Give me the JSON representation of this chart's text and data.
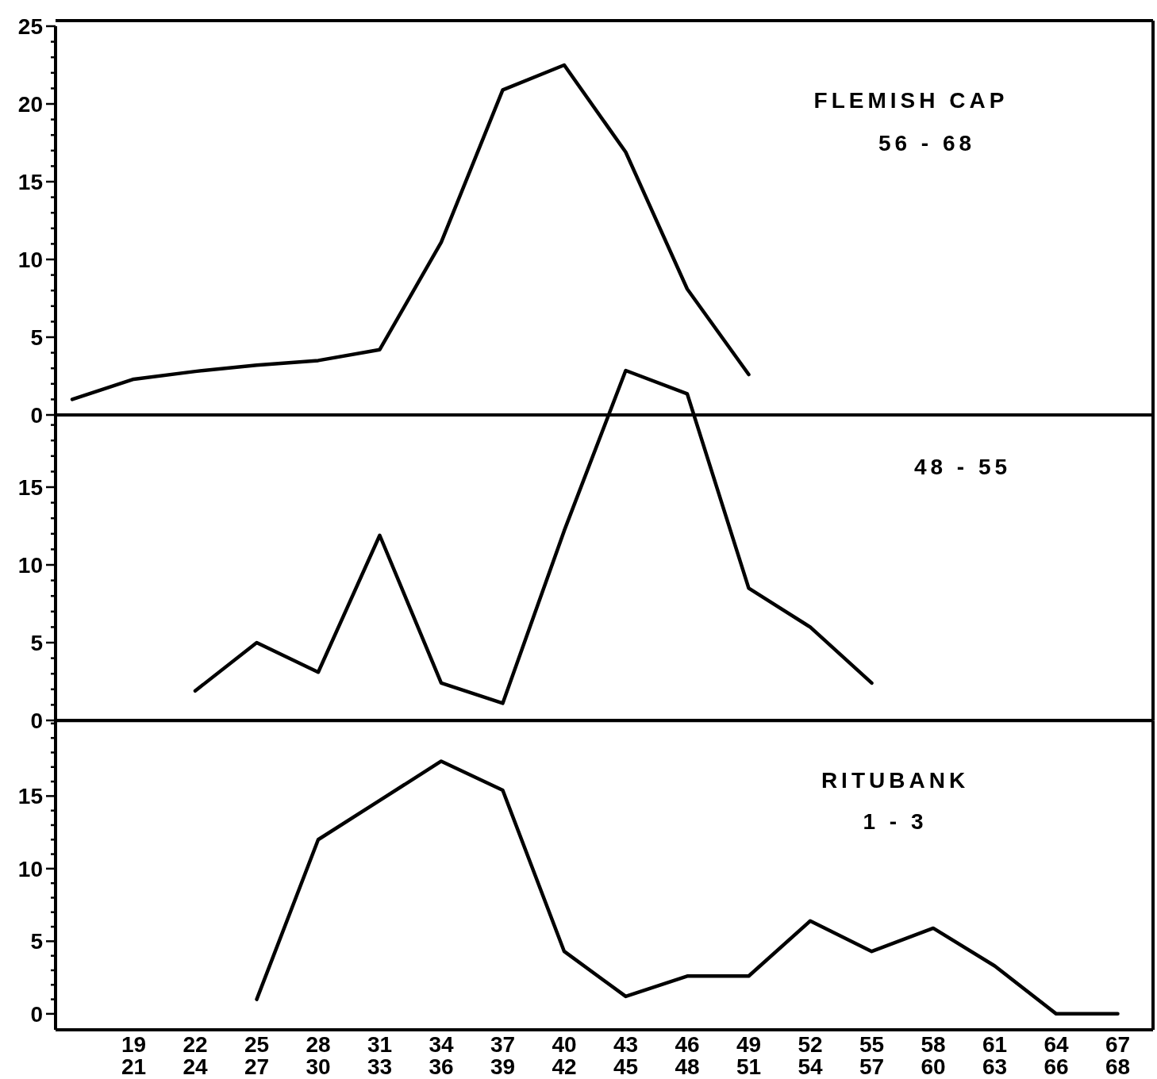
{
  "chart_data": [
    {
      "type": "line",
      "categories": [
        null,
        "19\n21",
        "22\n24",
        "25\n27",
        "28\n30",
        "31\n33",
        "34\n36",
        "37\n39",
        "40\n42",
        "43\n45",
        "46\n48",
        "49\n51",
        "52\n54",
        "55\n57",
        "58\n60",
        "61\n63",
        "64\n66",
        "67\n68"
      ],
      "values": [
        1.0,
        2.3,
        2.8,
        3.2,
        3.5,
        4.2,
        11.1,
        20.9,
        22.5,
        16.9,
        8.1,
        2.6,
        null,
        null,
        null,
        null,
        null,
        null
      ],
      "color": "#000000",
      "ylim": [
        0,
        25
      ],
      "yticks": [
        0,
        {
          "value": 1,
          "label": null
        },
        {
          "value": 2,
          "label": null
        },
        {
          "value": 3,
          "label": null
        },
        {
          "value": 4,
          "label": null
        },
        5,
        {
          "value": 6,
          "label": null
        },
        {
          "value": 7,
          "label": null
        },
        {
          "value": 8,
          "label": null
        },
        {
          "value": 9,
          "label": null
        },
        10,
        {
          "value": 11,
          "label": null
        },
        {
          "value": 12,
          "label": null
        },
        {
          "value": 13,
          "label": null
        },
        {
          "value": 14,
          "label": null
        },
        15,
        {
          "value": 16,
          "label": null
        },
        {
          "value": 17,
          "label": null
        },
        {
          "value": 18,
          "label": null
        },
        {
          "value": 19,
          "label": null
        },
        20,
        {
          "value": 21,
          "label": null
        },
        {
          "value": 22,
          "label": null
        },
        {
          "value": 23,
          "label": null
        },
        {
          "value": 24,
          "label": null
        },
        25
      ],
      "tick_labels": "y",
      "annotations": [
        "FLEMISH CAP",
        "56 - 68"
      ]
    },
    {
      "type": "line",
      "categories": [
        null,
        "19\n21",
        "22\n24",
        "25\n27",
        "28\n30",
        "31\n33",
        "34\n36",
        "37\n39",
        "40\n42",
        "43\n45",
        "46\n48",
        "49\n51",
        "52\n54",
        "55\n57",
        "58\n60",
        "61\n63",
        "64\n66",
        "67\n68"
      ],
      "values": [
        null,
        null,
        1.9,
        5.0,
        3.1,
        11.9,
        2.4,
        1.1,
        12.2,
        22.5,
        21.0,
        8.5,
        6.0,
        2.4,
        null,
        null,
        null,
        null
      ],
      "color": "#000000",
      "ylim": [
        0,
        23
      ],
      "yticks": [
        0,
        {
          "value": 1,
          "label": null
        },
        {
          "value": 2,
          "label": null
        },
        {
          "value": 3,
          "label": null
        },
        {
          "value": 4,
          "label": null
        },
        5,
        {
          "value": 6,
          "label": null
        },
        {
          "value": 7,
          "label": null
        },
        {
          "value": 8,
          "label": null
        },
        {
          "value": 9,
          "label": null
        },
        10,
        {
          "value": 11,
          "label": null
        },
        {
          "value": 12,
          "label": null
        },
        {
          "value": 13,
          "label": null
        },
        {
          "value": 14,
          "label": null
        },
        15,
        {
          "value": 16,
          "label": null
        },
        {
          "value": 17,
          "label": null
        },
        {
          "value": 18,
          "label": null
        },
        {
          "value": 19,
          "label": null
        }
      ],
      "tick_labels": "y",
      "annotations": [
        "48 - 55"
      ]
    },
    {
      "type": "line",
      "categories": [
        null,
        "19\n21",
        "22\n24",
        "25\n27",
        "28\n30",
        "31\n33",
        "34\n36",
        "37\n39",
        "40\n42",
        "43\n45",
        "46\n48",
        "49\n51",
        "52\n54",
        "55\n57",
        "58\n60",
        "61\n63",
        "64\n66",
        "67\n68"
      ],
      "values": [
        null,
        null,
        null,
        1.0,
        12.0,
        14.7,
        17.4,
        15.4,
        4.3,
        1.2,
        2.6,
        2.6,
        6.4,
        4.3,
        5.9,
        3.3,
        0,
        0
      ],
      "color": "#000000",
      "ylim": [
        -1.1,
        20.2
      ],
      "yticks": [
        0,
        {
          "value": 1,
          "label": null
        },
        {
          "value": 2,
          "label": null
        },
        {
          "value": 3,
          "label": null
        },
        {
          "value": 4,
          "label": null
        },
        5,
        {
          "value": 6,
          "label": null
        },
        {
          "value": 7,
          "label": null
        },
        {
          "value": 8,
          "label": null
        },
        {
          "value": 9,
          "label": null
        },
        10,
        {
          "value": 11,
          "label": null
        },
        {
          "value": 12,
          "label": null
        },
        {
          "value": 13,
          "label": null
        },
        {
          "value": 14,
          "label": null
        },
        15,
        {
          "value": 16,
          "label": null
        },
        {
          "value": 17,
          "label": null
        },
        {
          "value": 18,
          "label": null
        },
        {
          "value": 19,
          "label": null
        },
        {
          "value": 20,
          "label": null
        }
      ],
      "annotations": [
        "RITUBANK",
        "1 - 3"
      ]
    }
  ]
}
